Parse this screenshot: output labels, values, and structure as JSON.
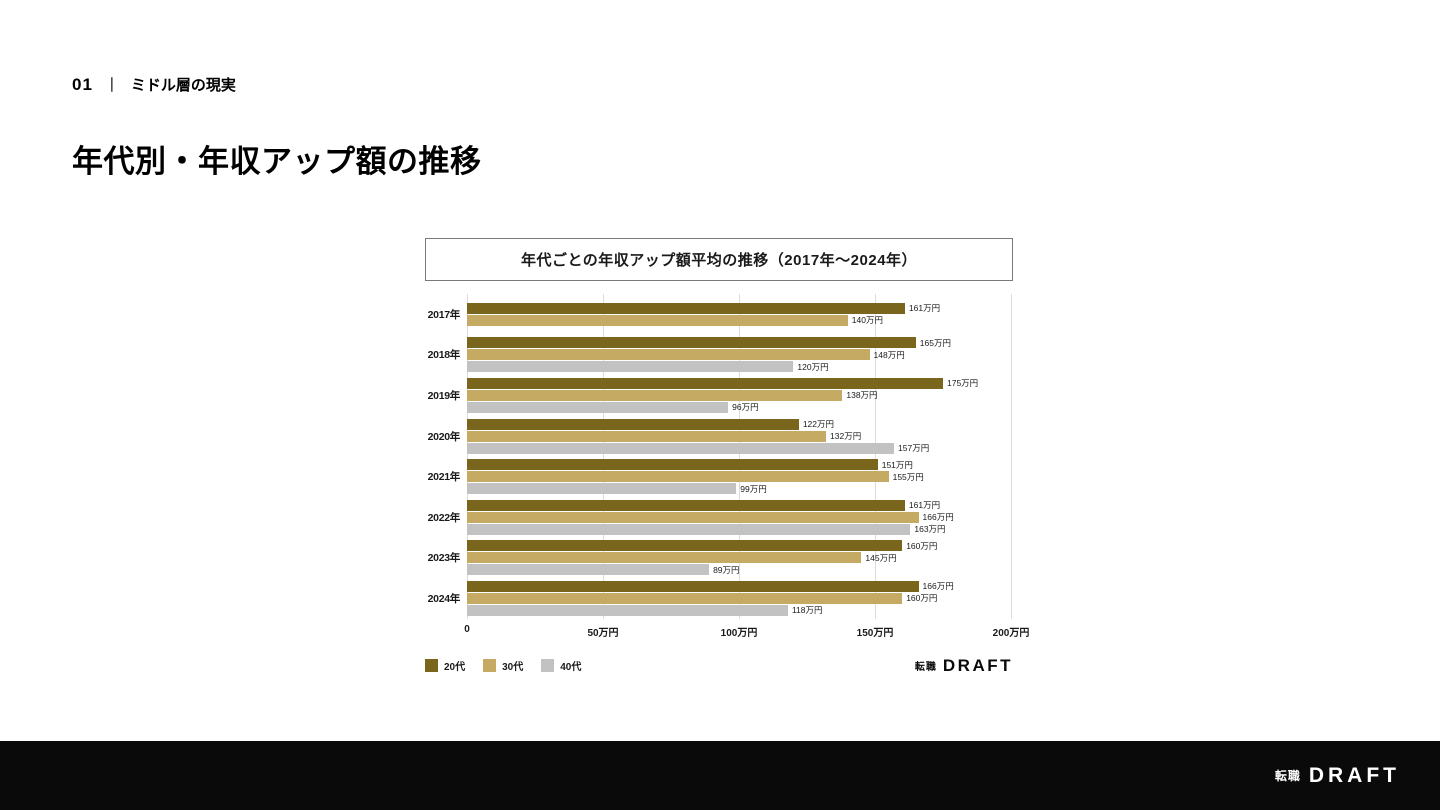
{
  "page": {
    "section_number": "01",
    "section_divider": "｜",
    "section_title": "ミドル層の現実",
    "title": "年代別・年収アップ額の推移"
  },
  "chart_data": {
    "type": "bar",
    "orientation": "horizontal",
    "title": "年代ごとの年収アップ額平均の推移（2017年〜2024年）",
    "categories": [
      "2017年",
      "2018年",
      "2019年",
      "2020年",
      "2021年",
      "2022年",
      "2023年",
      "2024年"
    ],
    "series": [
      {
        "name": "20代",
        "color": "#7a651d",
        "values": [
          161,
          165,
          175,
          122,
          151,
          161,
          160,
          166
        ]
      },
      {
        "name": "30代",
        "color": "#c4aa62",
        "values": [
          140,
          148,
          138,
          132,
          155,
          166,
          145,
          160
        ]
      },
      {
        "name": "40代",
        "color": "#c2c2c2",
        "values": [
          null,
          120,
          96,
          157,
          99,
          163,
          89,
          118
        ]
      }
    ],
    "value_suffix": "万円",
    "x_ticks": [
      "0",
      "50万円",
      "100万円",
      "150万円",
      "200万円"
    ],
    "xlim": [
      0,
      200
    ],
    "grid": true,
    "legend_position": "bottom-left"
  },
  "chart_logo": {
    "brand_prefix": "転職",
    "brand_name": "DRAFT"
  },
  "footer": {
    "brand_prefix": "転職",
    "brand_name": "DRAFT"
  }
}
